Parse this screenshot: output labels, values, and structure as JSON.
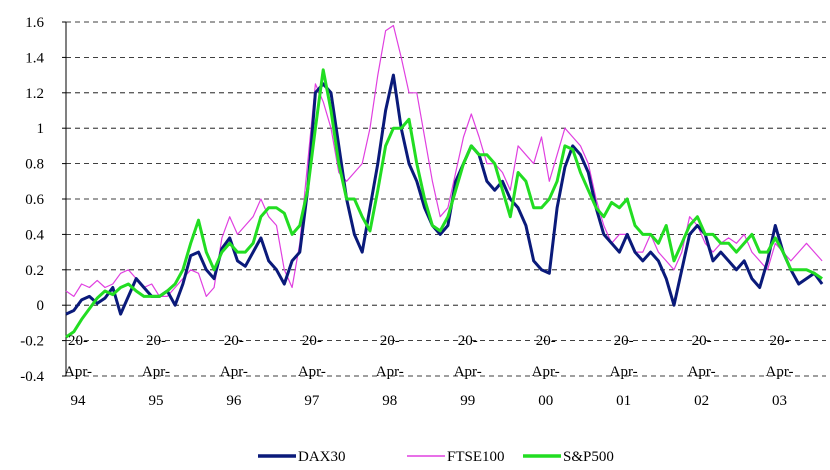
{
  "chart_data": {
    "type": "line",
    "title": "",
    "xlabel": "",
    "ylabel": "",
    "ylim": [
      -0.4,
      1.6
    ],
    "y_ticks": [
      -0.4,
      -0.2,
      0,
      0.2,
      0.4,
      0.6,
      0.8,
      1,
      1.2,
      1.4,
      1.6
    ],
    "y_tick_labels": [
      "-0.4",
      "-0.2",
      "0",
      "0.2",
      "0.4",
      "0.6",
      "0.8",
      "1",
      "1.2",
      "1.4",
      "1.6"
    ],
    "grid": "horizontal dashed",
    "x_ticks": [
      {
        "x": 1994.3,
        "lines": [
          "20-",
          "Apr-",
          "94"
        ]
      },
      {
        "x": 1995.3,
        "lines": [
          "20-",
          "Apr-",
          "95"
        ]
      },
      {
        "x": 1996.3,
        "lines": [
          "20-",
          "Apr-",
          "96"
        ]
      },
      {
        "x": 1997.3,
        "lines": [
          "20-",
          "Apr-",
          "97"
        ]
      },
      {
        "x": 1998.3,
        "lines": [
          "20-",
          "Apr-",
          "98"
        ]
      },
      {
        "x": 1999.3,
        "lines": [
          "20-",
          "Apr-",
          "99"
        ]
      },
      {
        "x": 2000.3,
        "lines": [
          "20-",
          "Apr-",
          "00"
        ]
      },
      {
        "x": 2001.3,
        "lines": [
          "20-",
          "Apr-",
          "01"
        ]
      },
      {
        "x": 2002.3,
        "lines": [
          "20-",
          "Apr-",
          "02"
        ]
      },
      {
        "x": 2003.3,
        "lines": [
          "20-",
          "Apr-",
          "03"
        ]
      }
    ],
    "xlim": [
      1994.3,
      2004.05
    ],
    "legend_position": "bottom",
    "series": [
      {
        "name": "DAX30",
        "color": "#0a1a7a",
        "x": [
          1994.3,
          1994.4,
          1994.5,
          1994.6,
          1994.7,
          1994.8,
          1994.9,
          1995.0,
          1995.1,
          1995.2,
          1995.3,
          1995.4,
          1995.5,
          1995.6,
          1995.7,
          1995.8,
          1995.9,
          1996.0,
          1996.1,
          1996.2,
          1996.3,
          1996.4,
          1996.5,
          1996.6,
          1996.7,
          1996.8,
          1996.9,
          1997.0,
          1997.1,
          1997.2,
          1997.3,
          1997.4,
          1997.5,
          1997.6,
          1997.7,
          1997.8,
          1997.9,
          1998.0,
          1998.1,
          1998.2,
          1998.3,
          1998.4,
          1998.5,
          1998.6,
          1998.7,
          1998.8,
          1998.9,
          1999.0,
          1999.1,
          1999.2,
          1999.3,
          1999.4,
          1999.5,
          1999.6,
          1999.7,
          1999.8,
          1999.9,
          2000.0,
          2000.1,
          2000.2,
          2000.3,
          2000.4,
          2000.5,
          2000.6,
          2000.7,
          2000.8,
          2000.9,
          2001.0,
          2001.1,
          2001.2,
          2001.3,
          2001.4,
          2001.5,
          2001.6,
          2001.7,
          2001.8,
          2001.9,
          2002.0,
          2002.1,
          2002.2,
          2002.3,
          2002.4,
          2002.5,
          2002.6,
          2002.7,
          2002.8,
          2002.9,
          2003.0,
          2003.1,
          2003.2,
          2003.3,
          2003.4,
          2003.5,
          2003.6,
          2003.7,
          2003.8,
          2003.9,
          2004.0
        ],
        "values": [
          -0.05,
          -0.03,
          0.03,
          0.05,
          0.01,
          0.04,
          0.1,
          -0.05,
          0.05,
          0.15,
          0.1,
          0.05,
          0.05,
          0.08,
          0.0,
          0.12,
          0.28,
          0.3,
          0.2,
          0.15,
          0.32,
          0.38,
          0.25,
          0.22,
          0.3,
          0.38,
          0.25,
          0.2,
          0.12,
          0.25,
          0.3,
          0.65,
          1.2,
          1.25,
          1.2,
          0.9,
          0.6,
          0.4,
          0.3,
          0.55,
          0.8,
          1.1,
          1.3,
          1.0,
          0.8,
          0.7,
          0.55,
          0.45,
          0.4,
          0.45,
          0.7,
          0.8,
          0.9,
          0.85,
          0.7,
          0.65,
          0.7,
          0.6,
          0.55,
          0.45,
          0.25,
          0.2,
          0.18,
          0.55,
          0.78,
          0.9,
          0.85,
          0.75,
          0.55,
          0.4,
          0.35,
          0.3,
          0.4,
          0.3,
          0.25,
          0.3,
          0.25,
          0.15,
          0.0,
          0.2,
          0.4,
          0.45,
          0.4,
          0.25,
          0.3,
          0.25,
          0.2,
          0.25,
          0.15,
          0.1,
          0.25,
          0.45,
          0.3,
          0.2,
          0.12,
          0.15,
          0.18,
          0.12
        ]
      },
      {
        "name": "FTSE100",
        "color": "#e040e0",
        "x": [
          1994.3,
          1994.4,
          1994.5,
          1994.6,
          1994.7,
          1994.8,
          1994.9,
          1995.0,
          1995.1,
          1995.2,
          1995.3,
          1995.4,
          1995.5,
          1995.6,
          1995.7,
          1995.8,
          1995.9,
          1996.0,
          1996.1,
          1996.2,
          1996.3,
          1996.4,
          1996.5,
          1996.6,
          1996.7,
          1996.8,
          1996.9,
          1997.0,
          1997.1,
          1997.2,
          1997.3,
          1997.4,
          1997.5,
          1997.6,
          1997.7,
          1997.8,
          1997.9,
          1998.0,
          1998.1,
          1998.2,
          1998.3,
          1998.4,
          1998.5,
          1998.6,
          1998.7,
          1998.8,
          1998.9,
          1999.0,
          1999.1,
          1999.2,
          1999.3,
          1999.4,
          1999.5,
          1999.6,
          1999.7,
          1999.8,
          1999.9,
          2000.0,
          2000.1,
          2000.2,
          2000.3,
          2000.4,
          2000.5,
          2000.6,
          2000.7,
          2000.8,
          2000.9,
          2001.0,
          2001.1,
          2001.2,
          2001.3,
          2001.4,
          2001.5,
          2001.6,
          2001.7,
          2001.8,
          2001.9,
          2002.0,
          2002.1,
          2002.2,
          2002.3,
          2002.4,
          2002.5,
          2002.6,
          2002.7,
          2002.8,
          2002.9,
          2003.0,
          2003.1,
          2003.2,
          2003.3,
          2003.4,
          2003.5,
          2003.6,
          2003.7,
          2003.8,
          2003.9,
          2004.0
        ],
        "values": [
          0.08,
          0.05,
          0.12,
          0.1,
          0.14,
          0.1,
          0.12,
          0.18,
          0.2,
          0.15,
          0.1,
          0.12,
          0.05,
          0.05,
          0.1,
          0.15,
          0.2,
          0.18,
          0.05,
          0.1,
          0.38,
          0.5,
          0.4,
          0.45,
          0.5,
          0.6,
          0.5,
          0.45,
          0.2,
          0.1,
          0.35,
          0.8,
          1.25,
          1.15,
          1.0,
          0.75,
          0.7,
          0.75,
          0.8,
          1.0,
          1.3,
          1.55,
          1.58,
          1.4,
          1.2,
          1.2,
          0.95,
          0.7,
          0.5,
          0.55,
          0.75,
          0.95,
          1.08,
          0.95,
          0.8,
          0.8,
          0.75,
          0.65,
          0.9,
          0.85,
          0.8,
          0.95,
          0.7,
          0.85,
          1.0,
          0.95,
          0.9,
          0.8,
          0.6,
          0.45,
          0.35,
          0.4,
          0.4,
          0.3,
          0.3,
          0.4,
          0.3,
          0.25,
          0.2,
          0.3,
          0.5,
          0.45,
          0.35,
          0.3,
          0.35,
          0.38,
          0.35,
          0.4,
          0.3,
          0.25,
          0.2,
          0.35,
          0.3,
          0.25,
          0.3,
          0.35,
          0.3,
          0.25
        ]
      },
      {
        "name": "S&P500",
        "color": "#22dd22",
        "x": [
          1994.3,
          1994.4,
          1994.5,
          1994.6,
          1994.7,
          1994.8,
          1994.9,
          1995.0,
          1995.1,
          1995.2,
          1995.3,
          1995.4,
          1995.5,
          1995.6,
          1995.7,
          1995.8,
          1995.9,
          1996.0,
          1996.1,
          1996.2,
          1996.3,
          1996.4,
          1996.5,
          1996.6,
          1996.7,
          1996.8,
          1996.9,
          1997.0,
          1997.1,
          1997.2,
          1997.3,
          1997.4,
          1997.5,
          1997.6,
          1997.7,
          1997.8,
          1997.9,
          1998.0,
          1998.1,
          1998.2,
          1998.3,
          1998.4,
          1998.5,
          1998.6,
          1998.7,
          1998.8,
          1998.9,
          1999.0,
          1999.1,
          1999.2,
          1999.3,
          1999.4,
          1999.5,
          1999.6,
          1999.7,
          1999.8,
          1999.9,
          2000.0,
          2000.1,
          2000.2,
          2000.3,
          2000.4,
          2000.5,
          2000.6,
          2000.7,
          2000.8,
          2000.9,
          2001.0,
          2001.1,
          2001.2,
          2001.3,
          2001.4,
          2001.5,
          2001.6,
          2001.7,
          2001.8,
          2001.9,
          2002.0,
          2002.1,
          2002.2,
          2002.3,
          2002.4,
          2002.5,
          2002.6,
          2002.7,
          2002.8,
          2002.9,
          2003.0,
          2003.1,
          2003.2,
          2003.3,
          2003.4,
          2003.5,
          2003.6,
          2003.7,
          2003.8,
          2003.9,
          2004.0
        ],
        "values": [
          -0.18,
          -0.15,
          -0.08,
          -0.02,
          0.04,
          0.08,
          0.06,
          0.1,
          0.12,
          0.08,
          0.05,
          0.05,
          0.05,
          0.08,
          0.12,
          0.2,
          0.35,
          0.48,
          0.3,
          0.2,
          0.3,
          0.35,
          0.3,
          0.3,
          0.35,
          0.5,
          0.55,
          0.55,
          0.52,
          0.4,
          0.45,
          0.65,
          1.0,
          1.33,
          1.1,
          0.8,
          0.6,
          0.6,
          0.5,
          0.42,
          0.65,
          0.9,
          1.0,
          1.0,
          1.05,
          0.8,
          0.6,
          0.45,
          0.42,
          0.5,
          0.65,
          0.8,
          0.9,
          0.85,
          0.85,
          0.8,
          0.65,
          0.5,
          0.75,
          0.7,
          0.55,
          0.55,
          0.6,
          0.7,
          0.9,
          0.88,
          0.75,
          0.65,
          0.55,
          0.5,
          0.58,
          0.55,
          0.6,
          0.45,
          0.4,
          0.4,
          0.35,
          0.45,
          0.25,
          0.35,
          0.45,
          0.5,
          0.4,
          0.4,
          0.35,
          0.35,
          0.3,
          0.35,
          0.4,
          0.3,
          0.3,
          0.38,
          0.3,
          0.2,
          0.2,
          0.2,
          0.18,
          0.15
        ]
      }
    ]
  }
}
